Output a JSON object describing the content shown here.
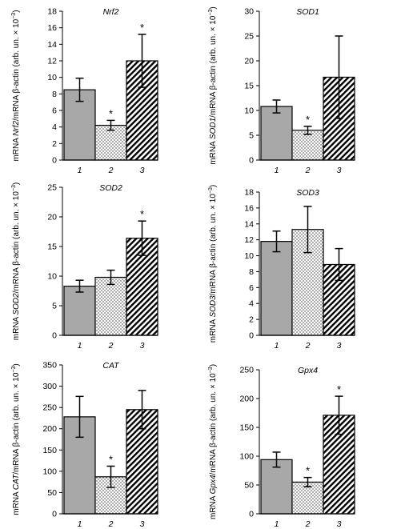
{
  "chart_data": [
    {
      "type": "bar",
      "gene": "Nrf2",
      "ylabel_parts": [
        "mRNA ",
        "Nrf2",
        "/mRNA β-actin (arb. un. × 10",
        "−3",
        ")"
      ],
      "ylim": [
        0,
        18
      ],
      "yticks": [
        0,
        2,
        4,
        6,
        8,
        10,
        12,
        14,
        16,
        18
      ],
      "categories": [
        "1",
        "2",
        "3"
      ],
      "values": [
        8.5,
        4.2,
        12.0
      ],
      "errors": [
        1.4,
        0.6,
        3.2
      ],
      "significant": [
        false,
        true,
        true
      ]
    },
    {
      "type": "bar",
      "gene": "SOD1",
      "ylabel_parts": [
        "mRNA ",
        "SOD1",
        "/mRNA β-actin (arb. un. × 10",
        "−3",
        ")"
      ],
      "ylim": [
        0,
        30
      ],
      "yticks": [
        0,
        5,
        10,
        15,
        20,
        25,
        30
      ],
      "categories": [
        "1",
        "2",
        "3"
      ],
      "values": [
        10.8,
        6.0,
        16.7
      ],
      "errors": [
        1.3,
        0.8,
        8.3
      ],
      "significant": [
        false,
        true,
        false
      ]
    },
    {
      "type": "bar",
      "gene": "SOD2",
      "ylabel_parts": [
        "mRNA ",
        "SOD2",
        "/mRNA β-actin (arb. un. × 10",
        "−3",
        ")"
      ],
      "ylim": [
        0,
        25
      ],
      "yticks": [
        0,
        5,
        10,
        15,
        20,
        25
      ],
      "categories": [
        "1",
        "2",
        "3"
      ],
      "values": [
        8.3,
        9.8,
        16.4
      ],
      "errors": [
        1.0,
        1.2,
        2.9
      ],
      "significant": [
        false,
        false,
        true
      ]
    },
    {
      "type": "bar",
      "gene": "SOD3",
      "ylabel_parts": [
        "mRNA ",
        "SOD3",
        "/mRNA β-actin (arb. un. × 10",
        "−3",
        ")"
      ],
      "ylim": [
        0,
        18
      ],
      "yticks": [
        0,
        2,
        4,
        6,
        8,
        10,
        12,
        14,
        16,
        18
      ],
      "categories": [
        "1",
        "2",
        "3"
      ],
      "values": [
        11.8,
        13.3,
        8.9
      ],
      "errors": [
        1.3,
        2.9,
        2.0
      ],
      "significant": [
        false,
        false,
        false
      ]
    },
    {
      "type": "bar",
      "gene": "CAT",
      "ylabel_parts": [
        "mRNA ",
        "CAT",
        "/mRNA β-actin (arb. un. × 10",
        "−3",
        ")"
      ],
      "ylim": [
        0,
        350
      ],
      "yticks": [
        0,
        50,
        100,
        150,
        200,
        250,
        300,
        350
      ],
      "categories": [
        "1",
        "2",
        "3"
      ],
      "values": [
        228,
        87,
        245
      ],
      "errors": [
        48,
        25,
        45
      ],
      "significant": [
        false,
        true,
        false
      ]
    },
    {
      "type": "bar",
      "gene": "Gpx4",
      "ylabel_parts": [
        "mRNA ",
        "Gpx4",
        "/mRNA β-actin (arb. un. × 10",
        "−3",
        ")"
      ],
      "ylim": [
        0,
        250
      ],
      "yticks": [
        0,
        50,
        100,
        150,
        200,
        250
      ],
      "categories": [
        "1",
        "2",
        "3"
      ],
      "values": [
        94,
        55,
        171
      ],
      "errors": [
        13,
        8,
        33
      ],
      "significant": [
        false,
        true,
        true
      ]
    }
  ],
  "colors": {
    "group1_fill": "#a8a8a8",
    "group2_fill": "#ffffff",
    "group3_fill": "#ffffff",
    "stroke": "#000000"
  },
  "significance_marker": "*"
}
